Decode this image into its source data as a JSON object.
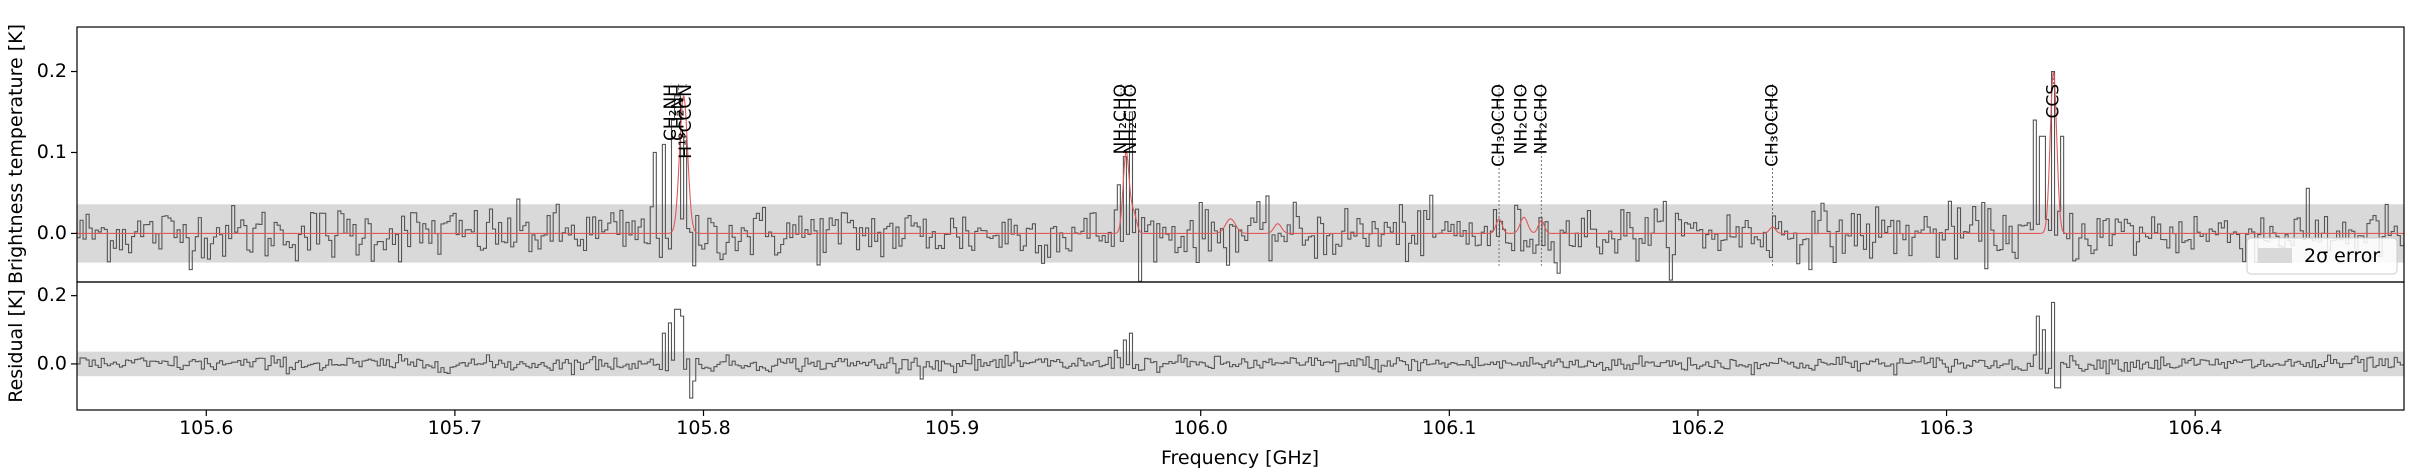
{
  "chart_data": [
    {
      "panel": "main",
      "type": "line",
      "ylabel": "Brightness temperature [K]",
      "xlim": [
        105.548,
        106.484
      ],
      "ylim": [
        -0.06,
        0.255
      ],
      "yticks": [
        0.0,
        0.1,
        0.2
      ],
      "yticklabels": [
        "0.0",
        "0.1",
        "0.2"
      ],
      "error_band": {
        "low": -0.036,
        "high": 0.036,
        "label": "2σ error",
        "color": "#d9d9d9"
      },
      "legend": {
        "placement": "bottom-right",
        "entry_label": "2σ error"
      },
      "observed": {
        "style": "steps",
        "color": "#555555",
        "noise_sigma": 0.017,
        "peaks": [
          {
            "x": 105.78,
            "y": 0.1
          },
          {
            "x": 105.783,
            "y": 0.11
          },
          {
            "x": 105.787,
            "y": 0.14
          },
          {
            "x": 105.789,
            "y": 0.17
          },
          {
            "x": 105.792,
            "y": 0.12
          },
          {
            "x": 105.796,
            "y": -0.04
          },
          {
            "x": 105.966,
            "y": 0.06
          },
          {
            "x": 105.969,
            "y": 0.095
          },
          {
            "x": 105.971,
            "y": 0.15
          },
          {
            "x": 105.974,
            "y": 0.03
          },
          {
            "x": 106.335,
            "y": 0.14
          },
          {
            "x": 106.338,
            "y": 0.12
          },
          {
            "x": 106.342,
            "y": 0.2
          },
          {
            "x": 106.346,
            "y": 0.12
          }
        ]
      },
      "model": {
        "style": "line",
        "color": "#e05a5a",
        "components": [
          {
            "x": 105.792,
            "amp": 0.17,
            "width": 0.0016
          },
          {
            "x": 105.97,
            "amp": 0.1,
            "width": 0.0012
          },
          {
            "x": 105.973,
            "amp": 0.025,
            "width": 0.0012
          },
          {
            "x": 106.012,
            "amp": 0.018,
            "width": 0.002
          },
          {
            "x": 106.031,
            "amp": 0.012,
            "width": 0.0015
          },
          {
            "x": 106.12,
            "amp": 0.018,
            "width": 0.0012
          },
          {
            "x": 106.13,
            "amp": 0.02,
            "width": 0.0015
          },
          {
            "x": 106.137,
            "amp": 0.016,
            "width": 0.0012
          },
          {
            "x": 106.23,
            "amp": 0.008,
            "width": 0.0012
          },
          {
            "x": 106.343,
            "amp": 0.2,
            "width": 0.0013
          }
        ]
      },
      "line_labels": [
        {
          "label": "CH₂NH",
          "x": 105.787,
          "marker_y": 0.185
        },
        {
          "label": "CH₂NH",
          "x": 105.79,
          "marker_y": 0.17
        },
        {
          "label": "H¹³CCCN",
          "x": 105.793,
          "marker_y": 0.18
        },
        {
          "label": "NH₂CHO",
          "x": 105.968,
          "marker_y": 0.17
        },
        {
          "label": "NH₂CHO",
          "x": 105.972,
          "marker_y": 0.17
        },
        {
          "label": "CH₃OCHO",
          "x": 106.12,
          "marker_y": -0.04
        },
        {
          "label": "NH₂CHO",
          "x": 106.129,
          "marker_y": 0.17
        },
        {
          "label": "NH₂CHO",
          "x": 106.137,
          "marker_y": -0.04
        },
        {
          "label": "CH₃OCHO",
          "x": 106.23,
          "marker_y": -0.04
        },
        {
          "label": "CCS",
          "x": 106.343,
          "marker_y": 0.2
        }
      ]
    },
    {
      "panel": "residual",
      "type": "line",
      "ylabel": "Residual [K]",
      "xlabel": "Frequency [GHz]",
      "xlim": [
        105.548,
        106.484
      ],
      "ylim": [
        -0.135,
        0.24
      ],
      "yticks": [
        0.0,
        0.2
      ],
      "yticklabels": [
        "0.0",
        "0.2"
      ],
      "error_band": {
        "low": -0.036,
        "high": 0.036,
        "color": "#d9d9d9"
      },
      "xticks": [
        105.6,
        105.7,
        105.8,
        105.9,
        106.0,
        106.1,
        106.2,
        106.3,
        106.4
      ],
      "xticklabels": [
        "105.6",
        "105.7",
        "105.8",
        "105.9",
        "106.0",
        "106.1",
        "106.2",
        "106.3",
        "106.4"
      ],
      "residual": {
        "style": "steps",
        "color": "#555555",
        "noise_sigma": 0.011,
        "peaks": [
          {
            "x": 105.783,
            "y": 0.09
          },
          {
            "x": 105.786,
            "y": 0.12
          },
          {
            "x": 105.789,
            "y": 0.16
          },
          {
            "x": 105.791,
            "y": 0.14
          },
          {
            "x": 105.794,
            "y": -0.1
          },
          {
            "x": 105.796,
            "y": -0.05
          },
          {
            "x": 105.965,
            "y": 0.04
          },
          {
            "x": 105.969,
            "y": 0.07
          },
          {
            "x": 105.971,
            "y": 0.09
          },
          {
            "x": 106.336,
            "y": 0.14
          },
          {
            "x": 106.339,
            "y": 0.1
          },
          {
            "x": 106.342,
            "y": 0.18
          },
          {
            "x": 106.344,
            "y": -0.07
          }
        ]
      }
    }
  ]
}
